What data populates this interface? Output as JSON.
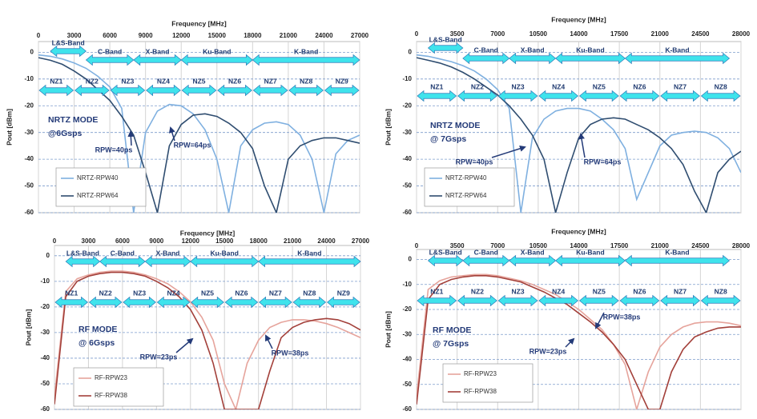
{
  "chart_data": [
    {
      "type": "line",
      "x_label": "Frequency [MHz]",
      "y_label": "Pout [dBm]",
      "mode_label": [
        "NRTZ MODE",
        "@6Gsps"
      ],
      "annotations": [
        "RPW=40ps",
        "RPW=64ps"
      ],
      "xlim": [
        0,
        27000
      ],
      "xticks": [
        0,
        3000,
        6000,
        9000,
        12000,
        15000,
        18000,
        21000,
        24000,
        27000
      ],
      "ylim": [
        -60,
        4
      ],
      "yticks": [
        0,
        -10,
        -20,
        -30,
        -40,
        -50,
        -60
      ],
      "grid": true,
      "x": [
        0,
        1000,
        2000,
        3000,
        4000,
        5000,
        6000,
        7000,
        8000,
        9000,
        10000,
        11000,
        12000,
        13000,
        14000,
        15000,
        16000,
        17000,
        18000,
        19000,
        20000,
        21000,
        22000,
        23000,
        24000,
        25000,
        26000,
        27000
      ],
      "series": [
        {
          "name": "NRTZ-RPW40",
          "color": "#7fb0e0",
          "values": [
            -1,
            -1.5,
            -2.5,
            -4,
            -6,
            -9,
            -13,
            -21,
            -60,
            -30,
            -22,
            -19.5,
            -20,
            -23,
            -29,
            -40,
            -60,
            -35,
            -29,
            -26.5,
            -26,
            -27,
            -31,
            -40,
            -60,
            -38,
            -33,
            -31
          ]
        },
        {
          "name": "NRTZ-RPW64",
          "color": "#2f4d70",
          "values": [
            -2,
            -3,
            -4.5,
            -7,
            -10,
            -14,
            -18,
            -24,
            -31,
            -45,
            -60,
            -35,
            -27,
            -23.5,
            -23,
            -24,
            -26.5,
            -30,
            -36,
            -50,
            -60,
            -40,
            -35,
            -33,
            -32,
            -32,
            -33,
            -34
          ]
        }
      ],
      "bands": [
        {
          "label": "L&S-Band",
          "start": 1000,
          "end": 4000
        },
        {
          "label": "C-Band",
          "start": 4000,
          "end": 8000
        },
        {
          "label": "X-Band",
          "start": 8000,
          "end": 12000
        },
        {
          "label": "Ku-Band",
          "start": 12000,
          "end": 18000
        },
        {
          "label": "K-Band",
          "start": 18000,
          "end": 27000
        }
      ],
      "zones": [
        {
          "label": "NZ1",
          "start": 0,
          "end": 3000
        },
        {
          "label": "NZ2",
          "start": 3000,
          "end": 6000
        },
        {
          "label": "NZ3",
          "start": 6000,
          "end": 9000
        },
        {
          "label": "NZ4",
          "start": 9000,
          "end": 12000
        },
        {
          "label": "NZ5",
          "start": 12000,
          "end": 15000
        },
        {
          "label": "NZ6",
          "start": 15000,
          "end": 18000
        },
        {
          "label": "NZ7",
          "start": 18000,
          "end": 21000
        },
        {
          "label": "NZ8",
          "start": 21000,
          "end": 24000
        },
        {
          "label": "NZ9",
          "start": 24000,
          "end": 27000
        }
      ]
    },
    {
      "type": "line",
      "x_label": "Frequency [MHz]",
      "y_label": "Pout [dBm]",
      "mode_label": [
        "NRTZ MODE",
        "@ 7Gsps"
      ],
      "annotations": [
        "RPW=40ps",
        "RPW=64ps"
      ],
      "xlim": [
        0,
        28000
      ],
      "xticks": [
        0,
        3500,
        7000,
        10500,
        14000,
        17500,
        21000,
        24500,
        28000
      ],
      "ylim": [
        -60,
        4
      ],
      "yticks": [
        0,
        -10,
        -20,
        -30,
        -40,
        -50,
        -60
      ],
      "grid": true,
      "x": [
        0,
        1000,
        2000,
        3000,
        4000,
        5000,
        6000,
        7000,
        8000,
        9000,
        10000,
        11000,
        12000,
        13000,
        14000,
        15000,
        16000,
        17000,
        18000,
        19000,
        20000,
        21000,
        22000,
        23000,
        24000,
        25000,
        26000,
        27000,
        28000
      ],
      "series": [
        {
          "name": "NRTZ-RPW40",
          "color": "#7fb0e0",
          "values": [
            -1,
            -1.5,
            -2.5,
            -3.5,
            -5,
            -7,
            -10,
            -14,
            -21,
            -60,
            -32,
            -25,
            -22,
            -21,
            -21,
            -22,
            -25,
            -29,
            -36,
            -55,
            -45,
            -35,
            -31,
            -30,
            -29.5,
            -30,
            -32,
            -36,
            -45
          ]
        },
        {
          "name": "NRTZ-RPW64",
          "color": "#2f4d70",
          "values": [
            -2,
            -3,
            -4,
            -5.5,
            -7.5,
            -10,
            -13,
            -16,
            -20,
            -25,
            -31,
            -40,
            -60,
            -45,
            -32,
            -27,
            -25,
            -24.5,
            -25,
            -27,
            -29,
            -32,
            -36,
            -42,
            -52,
            -60,
            -45,
            -40,
            -37
          ]
        }
      ],
      "bands": [
        {
          "label": "L&S-Band",
          "start": 1000,
          "end": 4000
        },
        {
          "label": "C-Band",
          "start": 4000,
          "end": 8000
        },
        {
          "label": "X-Band",
          "start": 8000,
          "end": 12000
        },
        {
          "label": "Ku-Band",
          "start": 12000,
          "end": 18000
        },
        {
          "label": "K-Band",
          "start": 18000,
          "end": 27000
        }
      ],
      "zones": [
        {
          "label": "NZ1",
          "start": 0,
          "end": 3500
        },
        {
          "label": "NZ2",
          "start": 3500,
          "end": 7000
        },
        {
          "label": "NZ3",
          "start": 7000,
          "end": 10500
        },
        {
          "label": "NZ4",
          "start": 10500,
          "end": 14000
        },
        {
          "label": "NZ5",
          "start": 14000,
          "end": 17500
        },
        {
          "label": "NZ6",
          "start": 17500,
          "end": 21000
        },
        {
          "label": "NZ7",
          "start": 21000,
          "end": 24500
        },
        {
          "label": "NZ8",
          "start": 24500,
          "end": 28000
        }
      ]
    },
    {
      "type": "line",
      "x_label": "Frequency [MHz]",
      "y_label": "Pout [dBm]",
      "mode_label": [
        "RF MODE",
        "@ 6Gsps"
      ],
      "annotations": [
        "RPW=23ps",
        "RPW=38ps"
      ],
      "xlim": [
        0,
        27000
      ],
      "xticks": [
        0,
        3000,
        6000,
        9000,
        12000,
        15000,
        18000,
        21000,
        24000,
        27000
      ],
      "ylim": [
        -60,
        4
      ],
      "yticks": [
        0,
        -10,
        -20,
        -30,
        -40,
        -50,
        -60
      ],
      "grid": true,
      "x": [
        0,
        1000,
        2000,
        3000,
        4000,
        5000,
        6000,
        7000,
        8000,
        9000,
        10000,
        11000,
        12000,
        13000,
        14000,
        15000,
        16000,
        17000,
        18000,
        19000,
        20000,
        21000,
        22000,
        23000,
        24000,
        25000,
        26000,
        27000
      ],
      "series": [
        {
          "name": "RF-RPW23",
          "color": "#e6a49c",
          "values": [
            -55,
            -14,
            -9,
            -7.5,
            -6.5,
            -6,
            -6,
            -6.5,
            -7.5,
            -9,
            -11,
            -14,
            -18,
            -24,
            -33,
            -50,
            -60,
            -42,
            -33,
            -28,
            -26,
            -25,
            -25,
            -25.5,
            -26.5,
            -28,
            -30,
            -32
          ]
        },
        {
          "name": "RF-RPW38",
          "color": "#a3403a",
          "values": [
            -58,
            -16,
            -10,
            -8,
            -7,
            -6.5,
            -6.5,
            -7,
            -8,
            -10,
            -12.5,
            -16,
            -21,
            -29,
            -42,
            -60,
            -60,
            -60,
            -60,
            -45,
            -32,
            -28,
            -26,
            -25,
            -24.5,
            -25,
            -26.5,
            -29
          ]
        }
      ],
      "bands": [
        {
          "label": "L&S-Band",
          "start": 1000,
          "end": 4000
        },
        {
          "label": "C-Band",
          "start": 4000,
          "end": 8000
        },
        {
          "label": "X-Band",
          "start": 8000,
          "end": 12000
        },
        {
          "label": "Ku-Band",
          "start": 12000,
          "end": 18000
        },
        {
          "label": "K-Band",
          "start": 18000,
          "end": 27000
        }
      ],
      "zones": [
        {
          "label": "NZ1",
          "start": 0,
          "end": 3000
        },
        {
          "label": "NZ2",
          "start": 3000,
          "end": 6000
        },
        {
          "label": "NZ3",
          "start": 6000,
          "end": 9000
        },
        {
          "label": "NZ4",
          "start": 9000,
          "end": 12000
        },
        {
          "label": "NZ5",
          "start": 12000,
          "end": 15000
        },
        {
          "label": "NZ6",
          "start": 15000,
          "end": 18000
        },
        {
          "label": "NZ7",
          "start": 18000,
          "end": 21000
        },
        {
          "label": "NZ8",
          "start": 21000,
          "end": 24000
        },
        {
          "label": "NZ9",
          "start": 24000,
          "end": 27000
        }
      ]
    },
    {
      "type": "line",
      "x_label": "Frequency [MHz]",
      "y_label": "Pout [dBm]",
      "mode_label": [
        "RF MODE",
        "@ 7Gsps"
      ],
      "annotations": [
        "RPW=38ps",
        "RPW=23ps"
      ],
      "xlim": [
        0,
        28000
      ],
      "xticks": [
        0,
        3500,
        7000,
        10500,
        14000,
        17500,
        21000,
        24500,
        28000
      ],
      "ylim": [
        -60,
        4
      ],
      "yticks": [
        0,
        -10,
        -20,
        -30,
        -40,
        -50,
        -60
      ],
      "grid": true,
      "x": [
        0,
        1000,
        2000,
        3000,
        4000,
        5000,
        6000,
        7000,
        8000,
        9000,
        10000,
        11000,
        12000,
        13000,
        14000,
        15000,
        16000,
        17000,
        18000,
        19000,
        20000,
        21000,
        22000,
        23000,
        24000,
        25000,
        26000,
        27000,
        28000
      ],
      "series": [
        {
          "name": "RF-RPW23",
          "color": "#e6a49c",
          "values": [
            -55,
            -12,
            -8.5,
            -7,
            -6.5,
            -6,
            -6,
            -6.5,
            -7.5,
            -8.5,
            -10,
            -12,
            -14,
            -17,
            -20,
            -24,
            -28,
            -34,
            -42,
            -60,
            -45,
            -35,
            -30,
            -27,
            -25.5,
            -25,
            -25,
            -25.5,
            -26.5
          ]
        },
        {
          "name": "RF-RPW38",
          "color": "#a3403a",
          "values": [
            -58,
            -16,
            -10,
            -8,
            -7,
            -6.5,
            -6.5,
            -7,
            -8,
            -9,
            -11,
            -13,
            -15.5,
            -18,
            -21.5,
            -25,
            -29,
            -34,
            -40,
            -50,
            -60,
            -60,
            -45,
            -36,
            -31,
            -29,
            -27.5,
            -27,
            -27
          ]
        }
      ],
      "bands": [
        {
          "label": "L&S-Band",
          "start": 1000,
          "end": 4000
        },
        {
          "label": "C-Band",
          "start": 4000,
          "end": 8000
        },
        {
          "label": "X-Band",
          "start": 8000,
          "end": 12000
        },
        {
          "label": "Ku-Band",
          "start": 12000,
          "end": 18000
        },
        {
          "label": "K-Band",
          "start": 18000,
          "end": 27000
        }
      ],
      "zones": [
        {
          "label": "NZ1",
          "start": 0,
          "end": 3500
        },
        {
          "label": "NZ2",
          "start": 3500,
          "end": 7000
        },
        {
          "label": "NZ3",
          "start": 7000,
          "end": 10500
        },
        {
          "label": "NZ4",
          "start": 10500,
          "end": 14000
        },
        {
          "label": "NZ5",
          "start": 14000,
          "end": 17500
        },
        {
          "label": "NZ6",
          "start": 17500,
          "end": 21000
        },
        {
          "label": "NZ7",
          "start": 21000,
          "end": 24500
        },
        {
          "label": "NZ8",
          "start": 24500,
          "end": 28000
        }
      ]
    }
  ]
}
